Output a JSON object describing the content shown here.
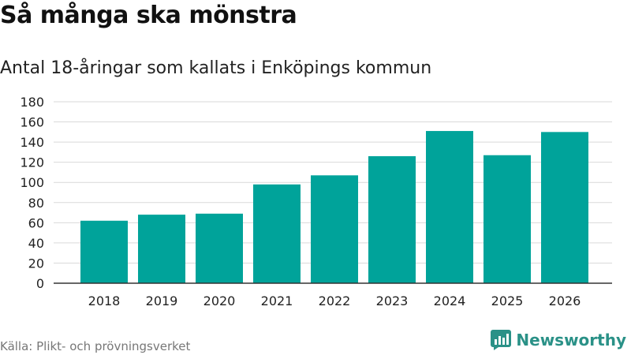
{
  "header": {
    "title": "Så många ska mönstra",
    "subtitle": "Antal 18-åringar som kallats i Enköpings kommun"
  },
  "footer": {
    "source": "Källa: Plikt- och prövningsverket",
    "brand": "Newsworthy",
    "brand_icon": "bar-chart-icon"
  },
  "colors": {
    "bar": "#00a39a",
    "grid": "#d9d9d9",
    "axis": "#333333",
    "brand": "#2a9187"
  },
  "chart_data": {
    "type": "bar",
    "title": "Så många ska mönstra",
    "subtitle": "Antal 18-åringar som kallats i Enköpings kommun",
    "categories": [
      "2018",
      "2019",
      "2020",
      "2021",
      "2022",
      "2023",
      "2024",
      "2025",
      "2026"
    ],
    "values": [
      62,
      68,
      69,
      98,
      107,
      126,
      151,
      127,
      150
    ],
    "ylim": [
      0,
      180
    ],
    "yticks": [
      0,
      20,
      40,
      60,
      80,
      100,
      120,
      140,
      160,
      180
    ],
    "grid": true,
    "legend": "none"
  }
}
